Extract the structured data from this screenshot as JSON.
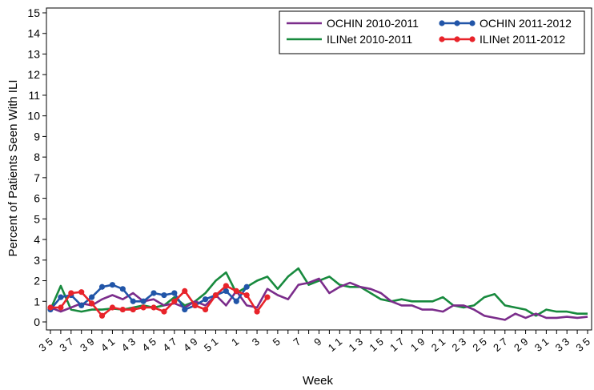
{
  "chart_data": {
    "type": "line",
    "xlabel": "Week",
    "ylabel": "Percent of Patients Seen With ILI",
    "ylim": [
      0,
      15
    ],
    "yticks": [
      0,
      1,
      2,
      3,
      4,
      5,
      6,
      7,
      8,
      9,
      10,
      11,
      12,
      13,
      14,
      15
    ],
    "x_tick_labels": [
      "35",
      "37",
      "39",
      "41",
      "43",
      "45",
      "47",
      "49",
      "51",
      "1",
      "3",
      "5",
      "7",
      "9",
      "11",
      "13",
      "15",
      "17",
      "19",
      "21",
      "23",
      "25",
      "27",
      "29",
      "31",
      "33",
      "35"
    ],
    "weeks": [
      "35",
      "36",
      "37",
      "38",
      "39",
      "40",
      "41",
      "42",
      "43",
      "44",
      "45",
      "46",
      "47",
      "48",
      "49",
      "50",
      "51",
      "52",
      "1",
      "2",
      "3",
      "4",
      "5",
      "6",
      "7",
      "8",
      "9",
      "10",
      "11",
      "12",
      "13",
      "14",
      "15",
      "16",
      "17",
      "18",
      "19",
      "20",
      "21",
      "22",
      "23",
      "24",
      "25",
      "26",
      "27",
      "28",
      "29",
      "30",
      "31",
      "32",
      "33",
      "34",
      "35"
    ],
    "legend_position": "top-right",
    "grid": false,
    "series": [
      {
        "name": "OCHIN 2010-2011",
        "color": "#7b2d8b",
        "markers": false,
        "values": [
          0.7,
          0.5,
          0.7,
          0.9,
          0.8,
          1.1,
          1.3,
          1.1,
          1.4,
          1.0,
          1.1,
          0.8,
          0.9,
          0.7,
          1.0,
          0.8,
          1.3,
          0.8,
          1.5,
          0.8,
          0.7,
          1.6,
          1.3,
          1.1,
          1.8,
          1.9,
          2.1,
          1.4,
          1.7,
          1.9,
          1.7,
          1.6,
          1.4,
          1.0,
          0.8,
          0.8,
          0.6,
          0.6,
          0.5,
          0.8,
          0.8,
          0.6,
          0.3,
          0.2,
          0.1,
          0.4,
          0.2,
          0.4,
          0.2,
          0.2,
          0.25,
          0.2,
          0.25
        ]
      },
      {
        "name": "OCHIN 2011-2012",
        "color": "#2155a8",
        "markers": true,
        "values": [
          0.6,
          1.2,
          1.3,
          0.8,
          1.2,
          1.7,
          1.8,
          1.6,
          1.0,
          1.0,
          1.4,
          1.3,
          1.4,
          0.6,
          0.8,
          1.1,
          1.3,
          1.5,
          1.0,
          1.7
        ]
      },
      {
        "name": "ILINet 2010-2011",
        "color": "#188a3e",
        "markers": false,
        "values": [
          0.6,
          1.75,
          0.6,
          0.5,
          0.6,
          0.6,
          0.65,
          0.6,
          0.7,
          0.8,
          0.7,
          0.8,
          1.2,
          0.8,
          1.0,
          1.4,
          2.0,
          2.4,
          1.4,
          1.7,
          2.0,
          2.2,
          1.6,
          2.2,
          2.6,
          1.8,
          2.0,
          2.2,
          1.8,
          1.7,
          1.7,
          1.4,
          1.1,
          1.0,
          1.1,
          1.0,
          1.0,
          1.0,
          1.2,
          0.8,
          0.7,
          0.8,
          1.2,
          1.35,
          0.8,
          0.7,
          0.6,
          0.3,
          0.6,
          0.5,
          0.5,
          0.4,
          0.4
        ]
      },
      {
        "name": "ILINet 2011-2012",
        "color": "#e8232a",
        "markers": true,
        "values": [
          0.7,
          0.7,
          1.4,
          1.45,
          0.9,
          0.3,
          0.7,
          0.6,
          0.6,
          0.7,
          0.7,
          0.5,
          1.0,
          1.5,
          0.8,
          0.6,
          1.3,
          1.75,
          1.5,
          1.3,
          0.5,
          1.2
        ]
      }
    ]
  }
}
